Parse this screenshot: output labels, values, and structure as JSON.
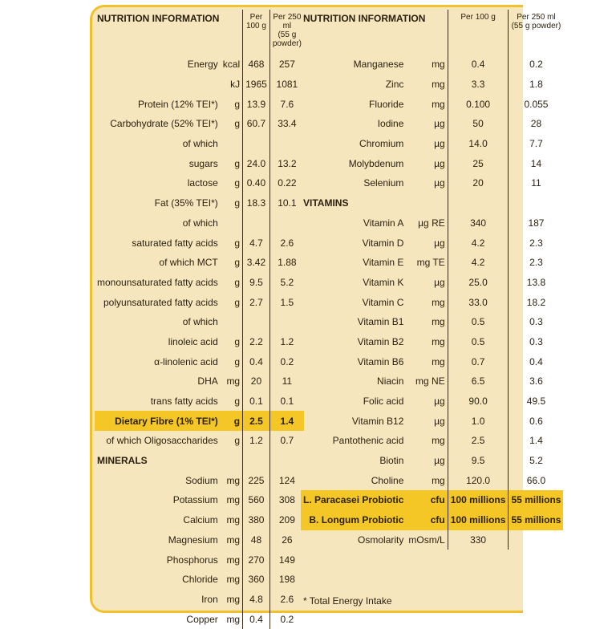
{
  "header": {
    "title": "NUTRITION INFORMATION",
    "per100": "Per 100 g",
    "per250": "Per 250 ml",
    "per250_sub": "(55 g powder)"
  },
  "left": {
    "rows": [
      {
        "label": "Energy",
        "unit": "kcal",
        "a": "468",
        "b": "257"
      },
      {
        "label": null,
        "unit": "kJ",
        "a": "1965",
        "b": "1081"
      },
      {
        "label": "Protein (12% TEI*)",
        "unit": "g",
        "a": "13.9",
        "b": "7.6"
      },
      {
        "label": "Carbohydrate (52% TEI*)",
        "unit": "g",
        "a": "60.7",
        "b": "33.4"
      },
      {
        "label": "of which",
        "unit": null,
        "a": null,
        "b": null
      },
      {
        "label": "sugars",
        "unit": "g",
        "a": "24.0",
        "b": "13.2"
      },
      {
        "label": "lactose",
        "unit": "g",
        "a": "0.40",
        "b": "0.22"
      },
      {
        "label": "Fat (35% TEI*)",
        "unit": "g",
        "a": "18.3",
        "b": "10.1"
      },
      {
        "label": "of which",
        "unit": null,
        "a": null,
        "b": null
      },
      {
        "label": "saturated fatty acids",
        "unit": "g",
        "a": "4.7",
        "b": "2.6"
      },
      {
        "label": "of which MCT",
        "unit": "g",
        "a": "3.42",
        "b": "1.88"
      },
      {
        "label": "monounsaturated fatty acids",
        "unit": "g",
        "a": "9.5",
        "b": "5.2"
      },
      {
        "label": "polyunsaturated fatty acids",
        "unit": "g",
        "a": "2.7",
        "b": "1.5"
      },
      {
        "label": "of which",
        "unit": null,
        "a": null,
        "b": null
      },
      {
        "label": "linoleic acid",
        "unit": "g",
        "a": "2.2",
        "b": "1.2"
      },
      {
        "label": "α-linolenic acid",
        "unit": "g",
        "a": "0.4",
        "b": "0.2"
      },
      {
        "label": "DHA",
        "unit": "mg",
        "a": "20",
        "b": "11"
      },
      {
        "label": "trans fatty acids",
        "unit": "g",
        "a": "0.1",
        "b": "0.1"
      },
      {
        "label": "Dietary Fibre (1% TEI*)",
        "unit": "g",
        "a": "2.5",
        "b": "1.4",
        "highlight": true
      },
      {
        "label": "of which Oligosaccharides",
        "unit": "g",
        "a": "1.2",
        "b": "0.7"
      },
      {
        "heading": "MINERALS"
      },
      {
        "label": "Sodium",
        "unit": "mg",
        "a": "225",
        "b": "124"
      },
      {
        "label": "Potassium",
        "unit": "mg",
        "a": "560",
        "b": "308"
      },
      {
        "label": "Calcium",
        "unit": "mg",
        "a": "380",
        "b": "209"
      },
      {
        "label": "Magnesium",
        "unit": "mg",
        "a": "48",
        "b": "26"
      },
      {
        "label": "Phosphorus",
        "unit": "mg",
        "a": "270",
        "b": "149"
      },
      {
        "label": "Chloride",
        "unit": "mg",
        "a": "360",
        "b": "198"
      },
      {
        "label": "Iron",
        "unit": "mg",
        "a": "4.8",
        "b": "2.6"
      },
      {
        "label": "Copper",
        "unit": "mg",
        "a": "0.4",
        "b": "0.2"
      }
    ]
  },
  "right": {
    "rows": [
      {
        "label": "Manganese",
        "unit": "mg",
        "a": "0.4",
        "b": "0.2"
      },
      {
        "label": "Zinc",
        "unit": "mg",
        "a": "3.3",
        "b": "1.8"
      },
      {
        "label": "Fluoride",
        "unit": "mg",
        "a": "0.100",
        "b": "0.055"
      },
      {
        "label": "Iodine",
        "unit": "µg",
        "a": "50",
        "b": "28"
      },
      {
        "label": "Chromium",
        "unit": "µg",
        "a": "14.0",
        "b": "7.7"
      },
      {
        "label": "Molybdenum",
        "unit": "µg",
        "a": "25",
        "b": "14"
      },
      {
        "label": "Selenium",
        "unit": "µg",
        "a": "20",
        "b": "11"
      },
      {
        "heading": "VITAMINS"
      },
      {
        "label": "Vitamin A",
        "unit": "µg RE",
        "a": "340",
        "b": "187"
      },
      {
        "label": "Vitamin D",
        "unit": "µg",
        "a": "4.2",
        "b": "2.3"
      },
      {
        "label": "Vitamin E",
        "unit": "mg TE",
        "a": "4.2",
        "b": "2.3"
      },
      {
        "label": "Vitamin K",
        "unit": "µg",
        "a": "25.0",
        "b": "13.8"
      },
      {
        "label": "Vitamin C",
        "unit": "mg",
        "a": "33.0",
        "b": "18.2"
      },
      {
        "label": "Vitamin B1",
        "unit": "mg",
        "a": "0.5",
        "b": "0.3"
      },
      {
        "label": "Vitamin B2",
        "unit": "mg",
        "a": "0.5",
        "b": "0.3"
      },
      {
        "label": "Vitamin B6",
        "unit": "mg",
        "a": "0.7",
        "b": "0.4"
      },
      {
        "label": "Niacin",
        "unit": "mg NE",
        "a": "6.5",
        "b": "3.6"
      },
      {
        "label": "Folic acid",
        "unit": "µg",
        "a": "90.0",
        "b": "49.5"
      },
      {
        "label": "Vitamin B12",
        "unit": "µg",
        "a": "1.0",
        "b": "0.6"
      },
      {
        "label": "Pantothenic acid",
        "unit": "mg",
        "a": "2.5",
        "b": "1.4"
      },
      {
        "label": "Biotin",
        "unit": "µg",
        "a": "9.5",
        "b": "5.2"
      },
      {
        "label": "Choline",
        "unit": "mg",
        "a": "120.0",
        "b": "66.0"
      },
      {
        "label": "L. Paracasei Probiotic",
        "unit": "cfu",
        "a": "100 millions",
        "b": "55 millions",
        "highlight": true
      },
      {
        "label": "B. Longum Probiotic",
        "unit": "cfu",
        "a": "100 millions",
        "b": "55 millions",
        "highlight": true
      },
      {
        "label": "Osmolarity",
        "unit": "mOsm/L",
        "a": "330",
        "b": null
      }
    ]
  },
  "footnote": "* Total Energy Intake"
}
